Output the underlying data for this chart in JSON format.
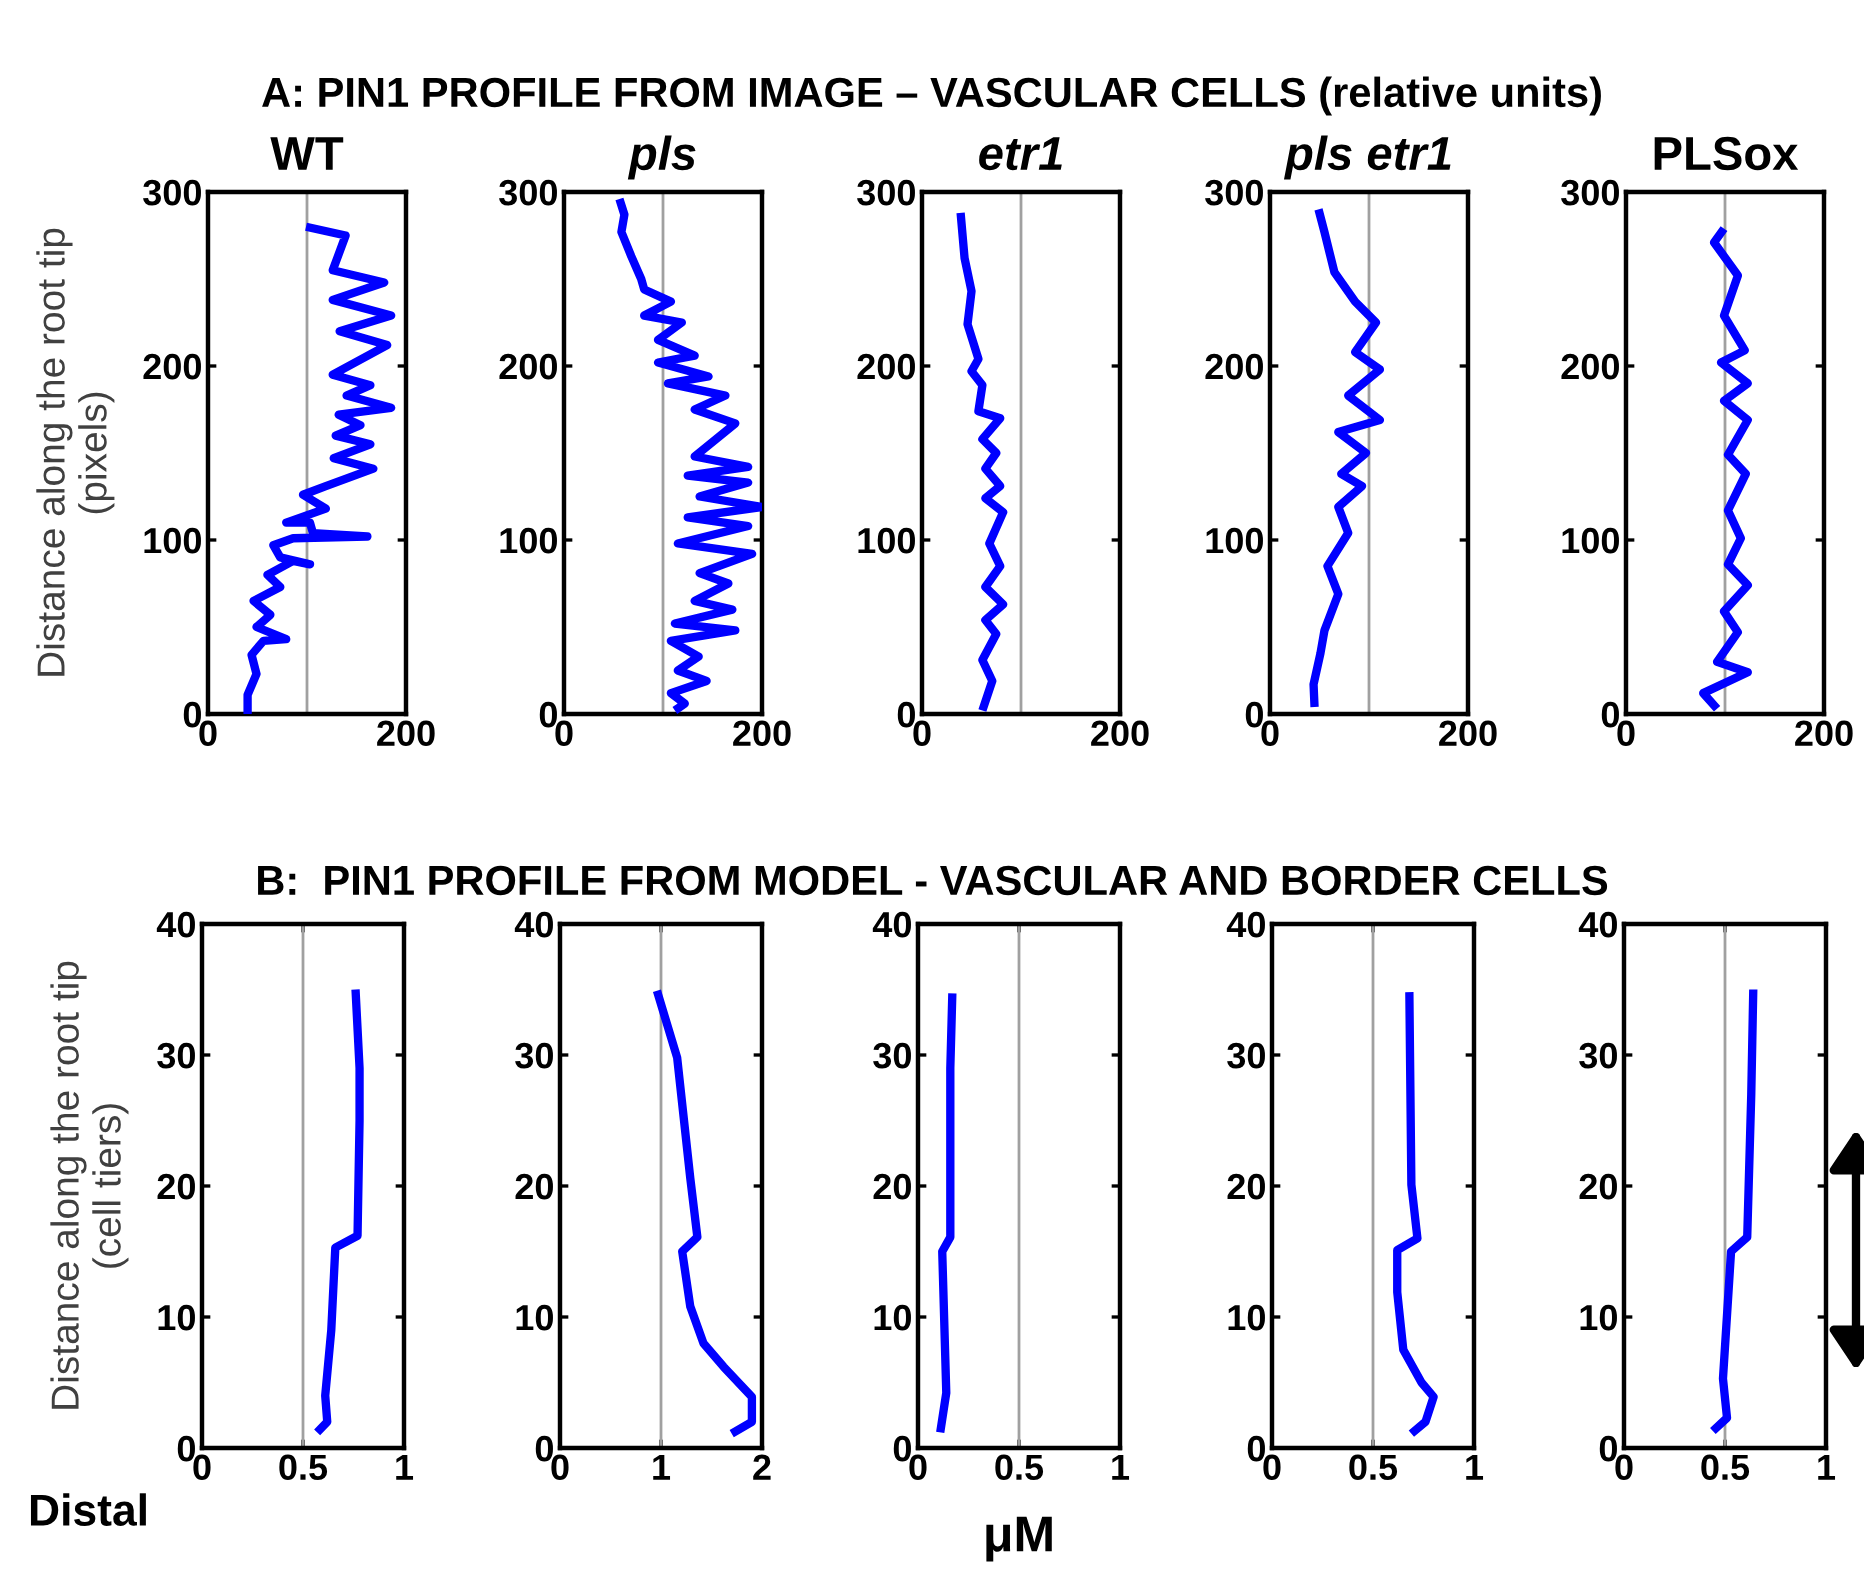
{
  "chart_data": [
    {
      "type": "line",
      "subtitle": "A: PIN1 PROFILE FROM IMAGE – VASCULAR CELLS (relative units)",
      "title": "WT",
      "ylabel": "Distance along the root tip\n(pixels)",
      "xlim": [
        0,
        200
      ],
      "xticks": [
        0,
        200
      ],
      "ylim": [
        0,
        300
      ],
      "yticks": [
        0,
        100,
        200,
        300
      ],
      "grid": false,
      "ref_lines": [
        {
          "axis": "x",
          "value": 100,
          "color": "#a0a0a0"
        }
      ],
      "series": [
        {
          "color": "#0000ff",
          "x": [
            40,
            40,
            49,
            44,
            56,
            79,
            49,
            63,
            46,
            73,
            60,
            86,
            103,
            73,
            66,
            86,
            161,
            106,
            103,
            79,
            119,
            96,
            119,
            167,
            127,
            164,
            129,
            154,
            132,
            185,
            140,
            164,
            126,
            181,
            133,
            185,
            126,
            178,
            126,
            139,
            99
          ],
          "values": [
            0,
            11,
            23,
            34,
            42,
            43,
            50,
            57,
            65,
            73,
            80,
            88,
            86,
            90,
            97,
            101,
            102,
            104,
            110,
            110,
            118,
            126,
            131,
            141,
            147,
            155,
            160,
            166,
            172,
            176,
            183,
            189,
            195,
            212,
            220,
            229,
            238,
            248,
            255,
            275,
            280
          ]
        }
      ]
    },
    {
      "type": "line",
      "title": "pls",
      "xlim": [
        0,
        200
      ],
      "xticks": [
        0,
        200
      ],
      "ylim": [
        0,
        300
      ],
      "yticks": [
        0,
        100,
        200,
        300
      ],
      "grid": false,
      "ref_lines": [
        {
          "axis": "x",
          "value": 100,
          "color": "#a0a0a0"
        }
      ],
      "series": [
        {
          "color": "#0000ff",
          "x": [
            112,
            122,
            108,
            144,
            115,
            136,
            108,
            173,
            112,
            170,
            132,
            166,
            137,
            190,
            115,
            186,
            125,
            200,
            137,
            186,
            125,
            186,
            132,
            173,
            132,
            163,
            105,
            146,
            95,
            132,
            95,
            119,
            81,
            108,
            81,
            78,
            68,
            58,
            61,
            56
          ],
          "values": [
            2,
            6,
            12,
            19,
            25,
            33,
            42,
            48,
            52,
            60,
            65,
            75,
            81,
            92,
            98,
            108,
            113,
            119,
            125,
            133,
            137,
            142,
            148,
            167,
            175,
            183,
            190,
            194,
            202,
            206,
            215,
            225,
            229,
            237,
            244,
            250,
            263,
            277,
            287,
            296
          ]
        }
      ]
    },
    {
      "type": "line",
      "title": "etr1",
      "xlim": [
        0,
        200
      ],
      "xticks": [
        0,
        200
      ],
      "ylim": [
        0,
        300
      ],
      "yticks": [
        0,
        100,
        200,
        300
      ],
      "grid": false,
      "ref_lines": [
        {
          "axis": "x",
          "value": 100,
          "color": "#a0a0a0"
        }
      ],
      "series": [
        {
          "color": "#0000ff",
          "x": [
            61,
            71,
            61,
            75,
            64,
            82,
            64,
            79,
            68,
            82,
            64,
            79,
            64,
            75,
            61,
            79,
            57,
            61,
            50,
            57,
            46,
            50,
            43,
            39
          ],
          "values": [
            2,
            19,
            31,
            46,
            54,
            63,
            73,
            85,
            98,
            116,
            124,
            131,
            141,
            150,
            158,
            170,
            174,
            189,
            197,
            204,
            224,
            243,
            262,
            288
          ]
        }
      ]
    },
    {
      "type": "line",
      "title": "pls etr1",
      "xlim": [
        0,
        200
      ],
      "xticks": [
        0,
        200
      ],
      "ylim": [
        0,
        300
      ],
      "yticks": [
        0,
        100,
        200,
        300
      ],
      "grid": false,
      "ref_lines": [
        {
          "axis": "x",
          "value": 100,
          "color": "#a0a0a0"
        }
      ],
      "series": [
        {
          "color": "#0000ff",
          "x": [
            45,
            44,
            51,
            55,
            69,
            58,
            79,
            69,
            93,
            72,
            97,
            69,
            111,
            79,
            111,
            86,
            107,
            86,
            65,
            55,
            49
          ],
          "values": [
            4,
            17,
            35,
            48,
            69,
            85,
            104,
            119,
            131,
            138,
            150,
            162,
            169,
            183,
            198,
            208,
            225,
            237,
            254,
            277,
            290
          ]
        }
      ]
    },
    {
      "type": "line",
      "title": "PLSox",
      "xlim": [
        0,
        200
      ],
      "xticks": [
        0,
        200
      ],
      "ylim": [
        0,
        300
      ],
      "yticks": [
        0,
        100,
        200,
        300
      ],
      "grid": false,
      "ref_lines": [
        {
          "axis": "x",
          "value": 100,
          "color": "#a0a0a0"
        }
      ],
      "series": [
        {
          "color": "#0000ff",
          "x": [
            92,
            78,
            123,
            92,
            113,
            99,
            123,
            103,
            116,
            103,
            121,
            103,
            123,
            99,
            123,
            96,
            120,
            99,
            113,
            89,
            99
          ],
          "values": [
            3,
            12,
            24,
            30,
            47,
            59,
            74,
            86,
            101,
            117,
            138,
            149,
            169,
            180,
            190,
            202,
            209,
            229,
            252,
            271,
            279
          ]
        }
      ]
    },
    {
      "type": "line",
      "subtitle": "B:  PIN1 PROFILE FROM MODEL - VASCULAR AND BORDER CELLS",
      "ylabel": "Distance along the root tip\n(cell tiers)",
      "annotations": [
        "Distal"
      ],
      "xlim": [
        0,
        1
      ],
      "xticks": [
        0,
        0.5,
        1
      ],
      "ylim": [
        0,
        40
      ],
      "yticks": [
        0,
        10,
        20,
        30,
        40
      ],
      "grid": false,
      "ref_lines": [
        {
          "axis": "x",
          "value": 0.5,
          "color": "#a0a0a0"
        }
      ],
      "series": [
        {
          "color": "#0000ff",
          "x": [
            0.57,
            0.62,
            0.61,
            0.64,
            0.66,
            0.77,
            0.78,
            0.78,
            0.76
          ],
          "values": [
            1.2,
            2,
            4,
            9,
            15.3,
            16.2,
            25,
            29,
            35
          ]
        }
      ]
    },
    {
      "type": "line",
      "xlim": [
        0,
        2
      ],
      "xticks": [
        0,
        1,
        2
      ],
      "ylim": [
        0,
        40
      ],
      "yticks": [
        0,
        10,
        20,
        30,
        40
      ],
      "grid": false,
      "ref_lines": [
        {
          "axis": "x",
          "value": 1,
          "color": "#a0a0a0"
        }
      ],
      "series": [
        {
          "color": "#0000ff",
          "x": [
            1.7,
            1.9,
            1.9,
            1.62,
            1.42,
            1.29,
            1.21,
            1.36,
            1.29,
            1.16,
            0.96
          ],
          "values": [
            1.1,
            2,
            3.9,
            6.2,
            8,
            10.8,
            15,
            16.1,
            20.6,
            29.8,
            34.9
          ]
        }
      ]
    },
    {
      "type": "line",
      "xlabel": "μM",
      "xlim": [
        0,
        1
      ],
      "xticks": [
        0,
        0.5,
        1
      ],
      "ylim": [
        0,
        40
      ],
      "yticks": [
        0,
        10,
        20,
        30,
        40
      ],
      "grid": false,
      "ref_lines": [
        {
          "axis": "x",
          "value": 0.5,
          "color": "#a0a0a0"
        }
      ],
      "series": [
        {
          "color": "#0000ff",
          "x": [
            0.11,
            0.14,
            0.12,
            0.16,
            0.16,
            0.17
          ],
          "values": [
            1.2,
            4.2,
            15,
            16.1,
            29,
            34.7
          ]
        }
      ]
    },
    {
      "type": "line",
      "xlim": [
        0,
        1
      ],
      "xticks": [
        0,
        0.5,
        1
      ],
      "ylim": [
        0,
        40
      ],
      "yticks": [
        0,
        10,
        20,
        30,
        40
      ],
      "grid": false,
      "ref_lines": [
        {
          "axis": "x",
          "value": 0.5,
          "color": "#a0a0a0"
        }
      ],
      "series": [
        {
          "color": "#0000ff",
          "x": [
            0.69,
            0.76,
            0.8,
            0.74,
            0.65,
            0.62,
            0.62,
            0.72,
            0.69,
            0.68
          ],
          "values": [
            1.1,
            2,
            3.9,
            5,
            7.5,
            11.9,
            15.1,
            16,
            20.1,
            34.8
          ]
        }
      ]
    },
    {
      "type": "line",
      "xlim": [
        0,
        1
      ],
      "xticks": [
        0,
        0.5,
        1
      ],
      "ylim": [
        0,
        40
      ],
      "yticks": [
        0,
        10,
        20,
        30,
        40
      ],
      "grid": false,
      "ref_lines": [
        {
          "axis": "x",
          "value": 0.5,
          "color": "#a0a0a0"
        }
      ],
      "series": [
        {
          "color": "#0000ff",
          "x": [
            0.44,
            0.51,
            0.49,
            0.53,
            0.61,
            0.63,
            0.64
          ],
          "values": [
            1.3,
            2.3,
            5.3,
            15,
            16.1,
            27,
            35
          ]
        }
      ]
    }
  ]
}
